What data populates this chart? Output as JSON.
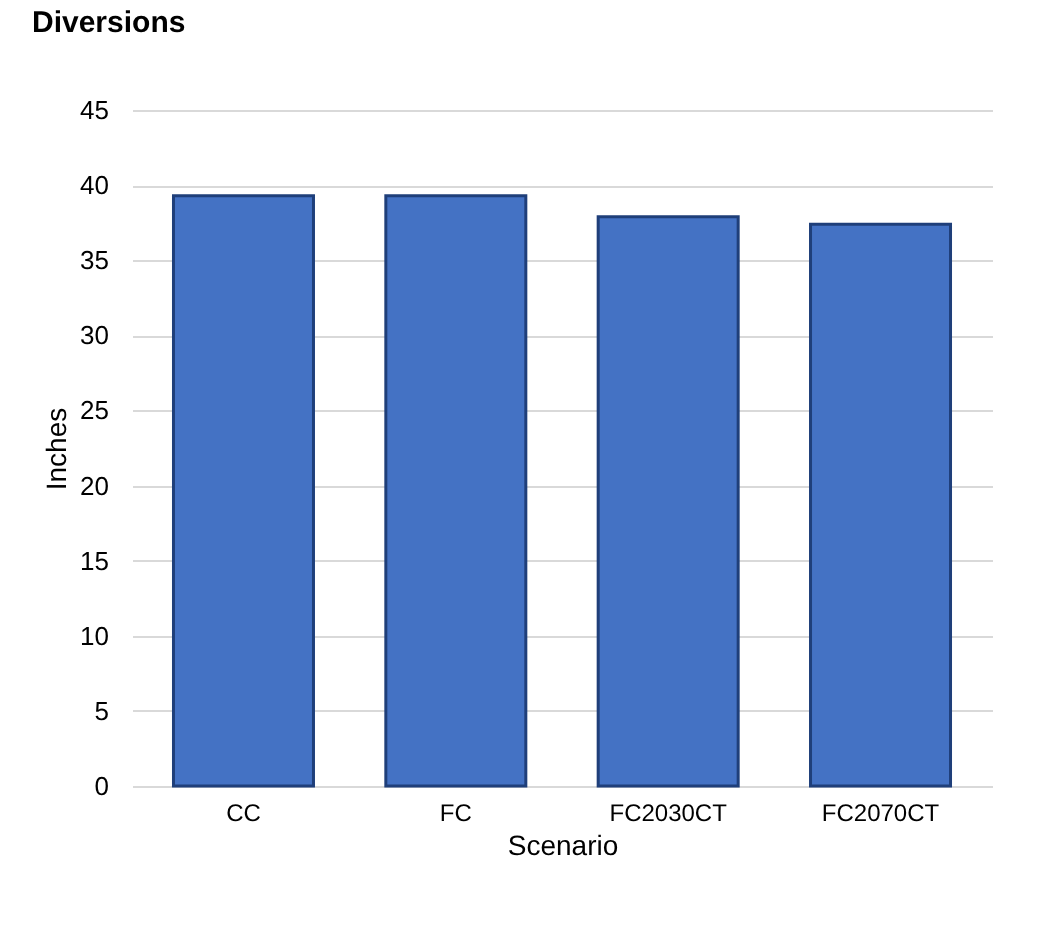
{
  "chart_data": {
    "type": "bar",
    "title": "Diversions",
    "xlabel": "Scenario",
    "ylabel": "Inches",
    "categories": [
      "CC",
      "FC",
      "FC2030CT",
      "FC2070CT"
    ],
    "values": [
      39.3,
      39.3,
      37.9,
      37.4
    ],
    "color": "#4472c4",
    "ylim": [
      0,
      45
    ],
    "yticks": [
      0,
      5,
      10,
      15,
      20,
      25,
      30,
      35,
      40,
      45
    ],
    "grid": "y"
  }
}
